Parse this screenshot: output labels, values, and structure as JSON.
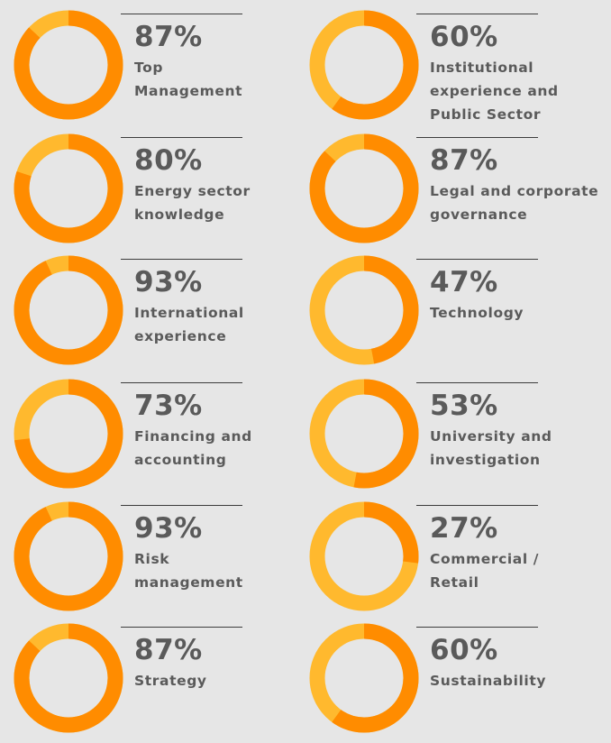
{
  "colors": {
    "background": "#e6e6e6",
    "share": "#ff8c00",
    "remainder": "#ffb92e",
    "text": "#5a5a5a",
    "rule": "#3d3d3d"
  },
  "chart_data": {
    "type": "pie",
    "title": "",
    "items": [
      {
        "percent": 87,
        "label": "Top\nManagement"
      },
      {
        "percent": 60,
        "label": "Institutional\nexperience and\nPublic Sector"
      },
      {
        "percent": 80,
        "label": "Energy sector\nknowledge"
      },
      {
        "percent": 87,
        "label": "Legal and corporate\ngovernance"
      },
      {
        "percent": 93,
        "label": "International\nexperience"
      },
      {
        "percent": 47,
        "label": "Technology"
      },
      {
        "percent": 73,
        "label": "Financing and\naccounting"
      },
      {
        "percent": 53,
        "label": "University and\ninvestigation"
      },
      {
        "percent": 93,
        "label": "Risk\nmanagement"
      },
      {
        "percent": 27,
        "label": "Commercial /\nRetail"
      },
      {
        "percent": 87,
        "label": "Strategy"
      },
      {
        "percent": 60,
        "label": "Sustainability"
      }
    ],
    "percent_strings": [
      "87%",
      "60%",
      "80%",
      "87%",
      "93%",
      "47%",
      "73%",
      "53%",
      "93%",
      "27%",
      "87%",
      "60%"
    ]
  }
}
